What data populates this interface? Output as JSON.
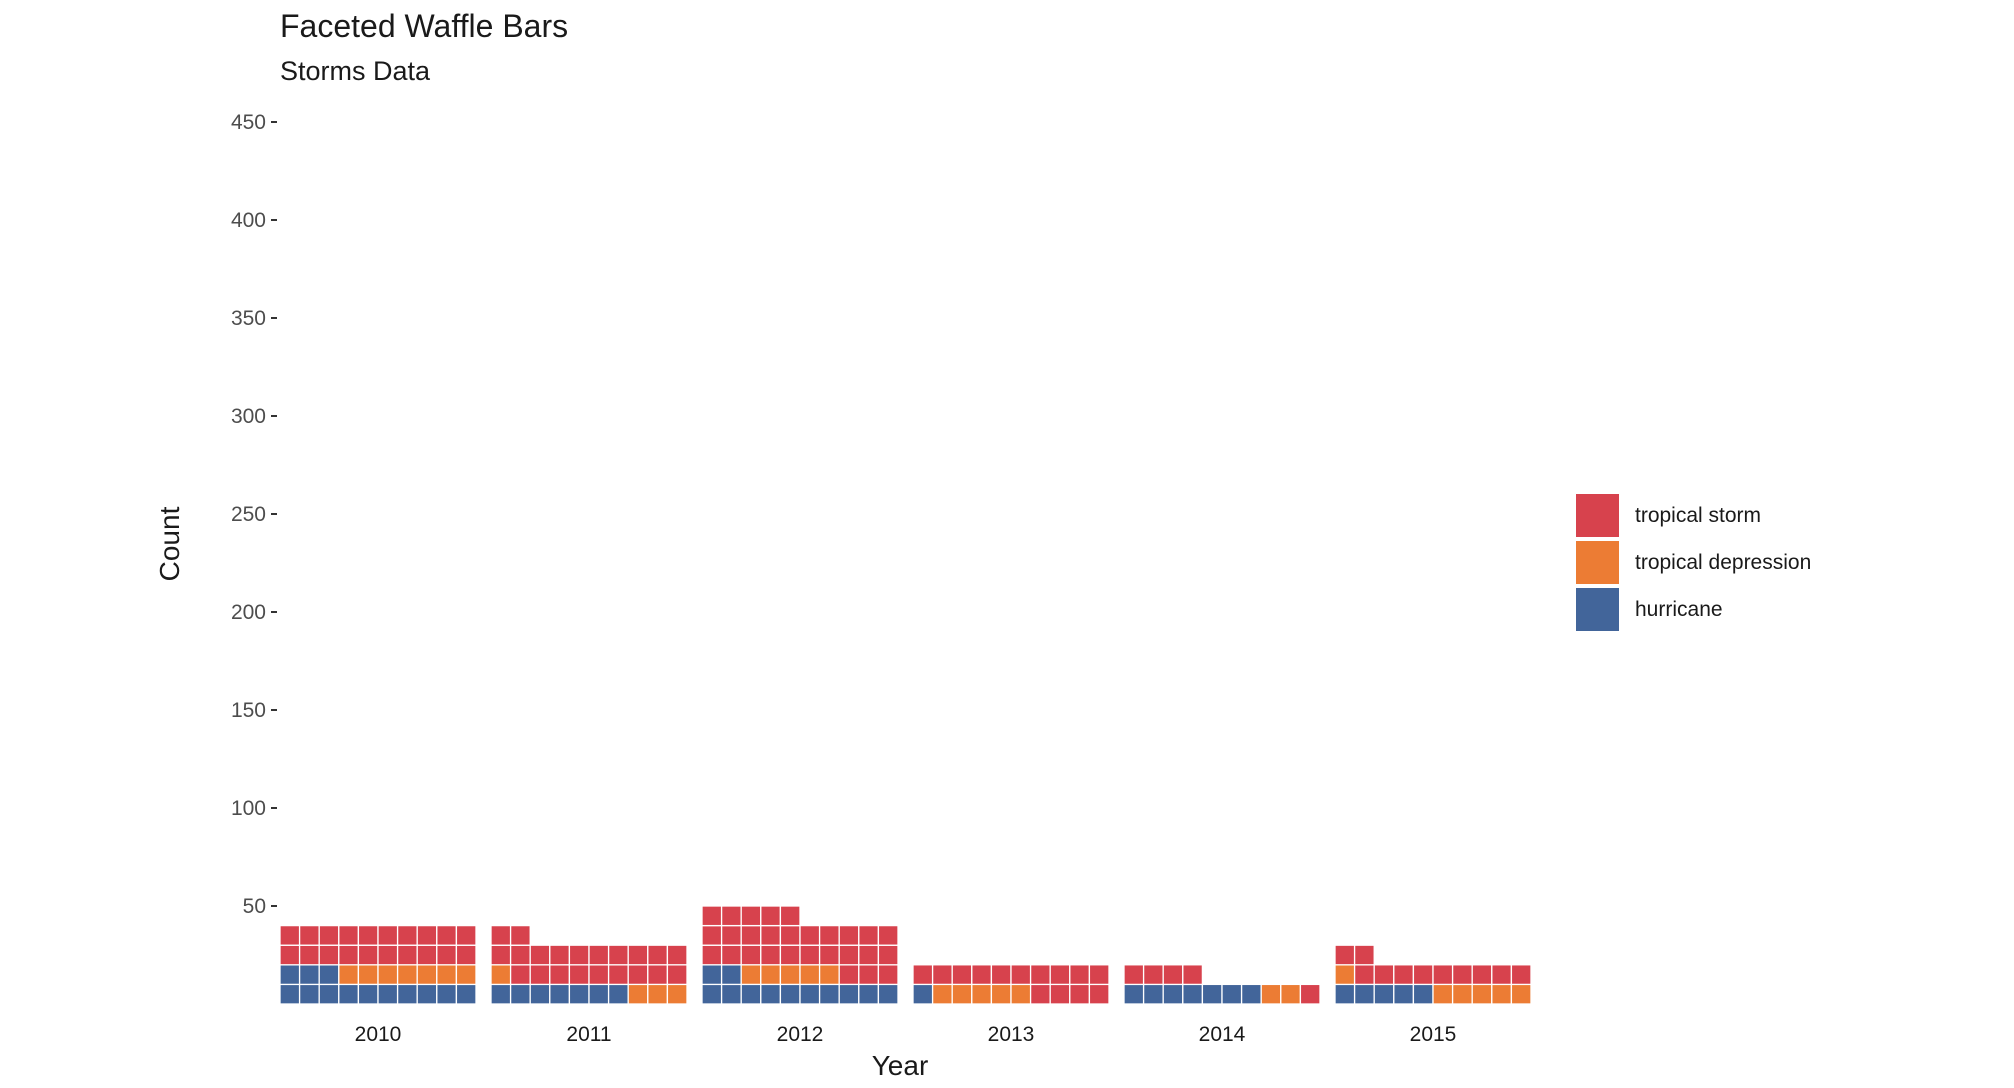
{
  "chart_data": {
    "type": "bar",
    "style": "faceted-waffle-stacked",
    "title": "Faceted Waffle Bars",
    "subtitle": "Storms Data",
    "xlabel": "Year",
    "ylabel": "Count",
    "ylim": [
      0,
      460
    ],
    "yticks": [
      50,
      100,
      150,
      200,
      250,
      300,
      350,
      400,
      450
    ],
    "unit_per_cell": 10,
    "columns_per_facet": 10,
    "grid": false,
    "legend_position": "right",
    "categories": [
      "2010",
      "2011",
      "2012",
      "2013",
      "2014",
      "2015"
    ],
    "series": [
      {
        "name": "hurricane",
        "color": "#42659A",
        "values": [
          132,
          72,
          122,
          12,
          74,
          50
        ]
      },
      {
        "name": "tropical depression",
        "color": "#EC7C34",
        "values": [
          71,
          43,
          50,
          49,
          21,
          55
        ]
      },
      {
        "name": "tropical storm",
        "color": "#D7424D",
        "values": [
          198,
          207,
          277,
          141,
          45,
          110
        ]
      }
    ],
    "legend": [
      {
        "label": "tropical storm",
        "color": "#D7424D"
      },
      {
        "label": "tropical depression",
        "color": "#EC7C34"
      },
      {
        "label": "hurricane",
        "color": "#42659A"
      }
    ]
  }
}
